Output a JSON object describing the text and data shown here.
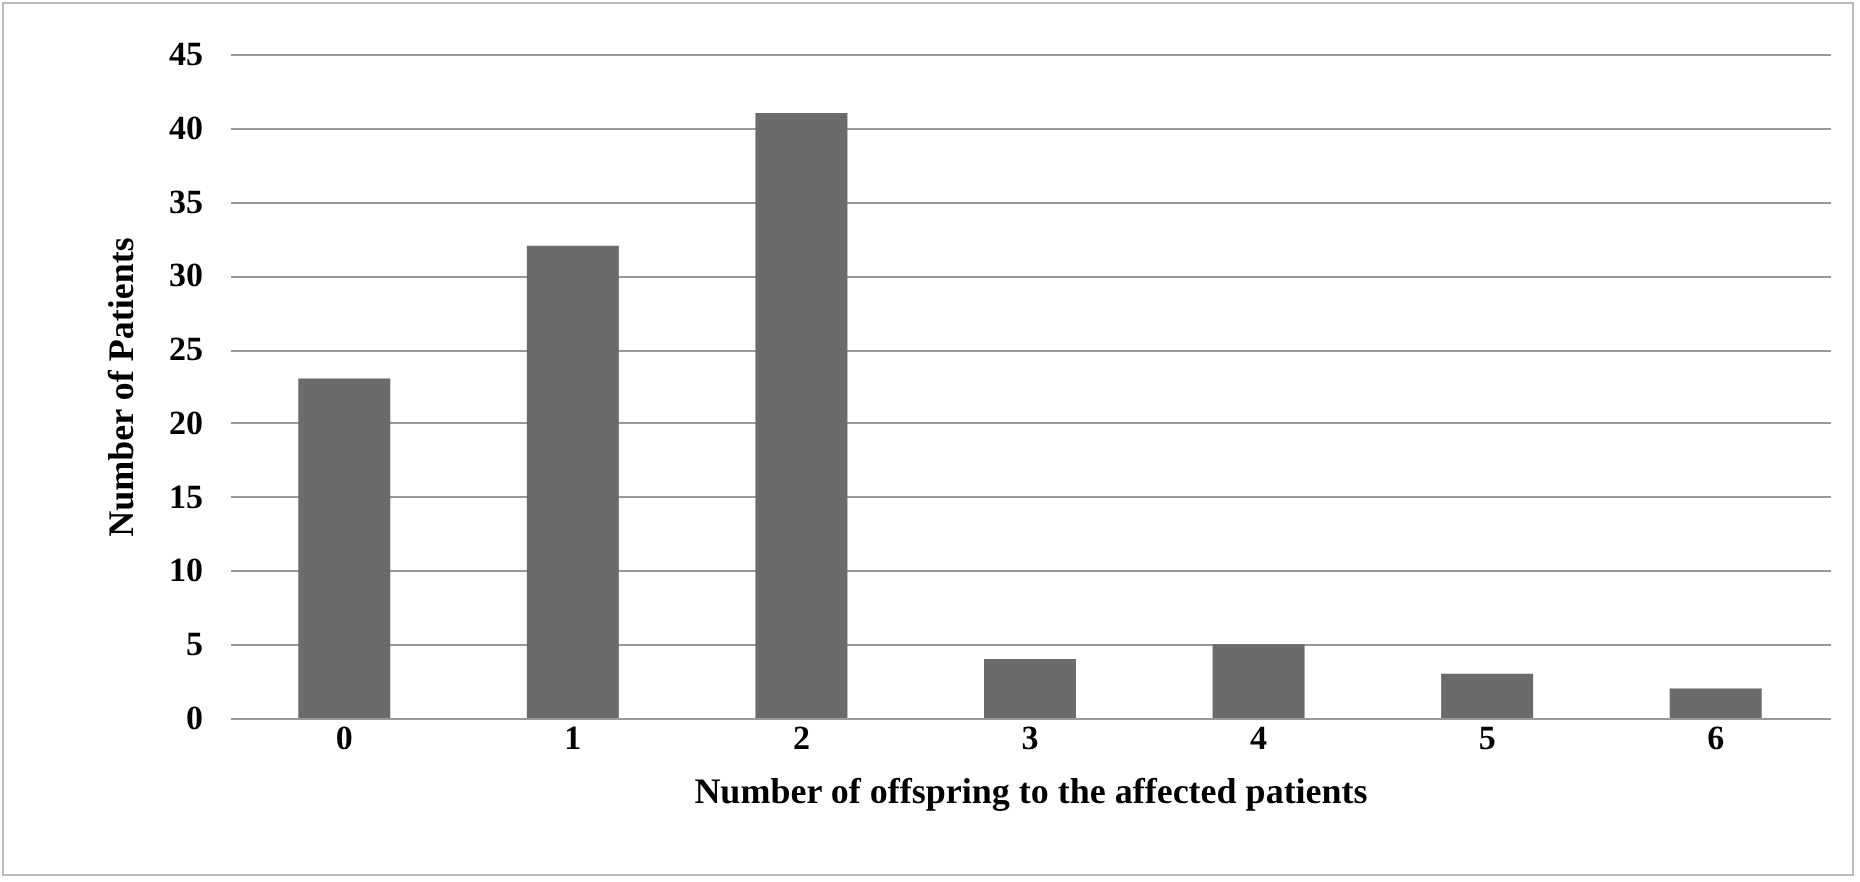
{
  "chart_data": {
    "type": "bar",
    "xlabel": "Number of offspring to the affected patients",
    "ylabel": "Number of Patients",
    "categories": [
      "0",
      "1",
      "2",
      "3",
      "4",
      "5",
      "6"
    ],
    "values": [
      23,
      32,
      41,
      4,
      5,
      3,
      2
    ],
    "color": "#6b6b6b",
    "ylim": [
      0,
      45
    ],
    "yticks": [
      0,
      5,
      10,
      15,
      20,
      25,
      30,
      35,
      40,
      45
    ],
    "grid": "y"
  }
}
